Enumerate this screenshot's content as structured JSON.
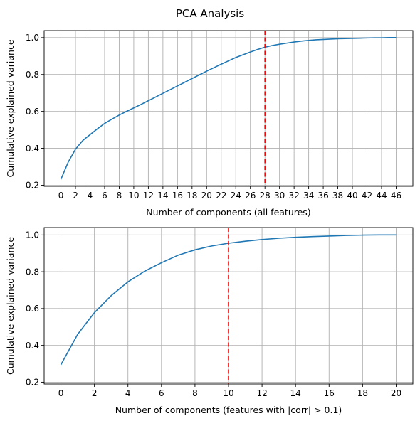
{
  "suptitle": "PCA Analysis",
  "chart_data": [
    {
      "type": "line",
      "series": [
        {
          "name": "cumulative explained variance",
          "x": [
            0,
            1,
            2,
            3,
            4,
            5,
            6,
            7,
            8,
            9,
            10,
            11,
            12,
            13,
            14,
            15,
            16,
            17,
            18,
            19,
            20,
            21,
            22,
            23,
            24,
            25,
            26,
            27,
            28,
            29,
            30,
            31,
            32,
            33,
            34,
            35,
            36,
            37,
            38,
            39,
            40,
            41,
            42,
            43,
            44,
            45,
            46
          ],
          "values": [
            0.232,
            0.325,
            0.395,
            0.442,
            0.474,
            0.505,
            0.535,
            0.558,
            0.58,
            0.6,
            0.619,
            0.638,
            0.658,
            0.678,
            0.698,
            0.718,
            0.738,
            0.758,
            0.778,
            0.798,
            0.818,
            0.837,
            0.856,
            0.874,
            0.892,
            0.907,
            0.922,
            0.936,
            0.948,
            0.957,
            0.964,
            0.97,
            0.976,
            0.981,
            0.985,
            0.988,
            0.99,
            0.992,
            0.994,
            0.995,
            0.996,
            0.997,
            0.998,
            0.999,
            0.999,
            1.0,
            1.0
          ]
        }
      ],
      "color": "#1f77b4",
      "threshold_x": 28,
      "threshold_color": "#ff0000",
      "xlabel": "Number of components (all features)",
      "ylabel": "Cumulative explained variance",
      "xlim": [
        -2.3,
        48.3
      ],
      "ylim": [
        0.194,
        1.038
      ],
      "xticks": [
        0,
        2,
        4,
        6,
        8,
        10,
        12,
        14,
        16,
        18,
        20,
        22,
        24,
        26,
        28,
        30,
        32,
        34,
        36,
        38,
        40,
        42,
        44,
        46
      ],
      "xtick_labels": [
        "0",
        "2",
        "4",
        "6",
        "8",
        "10",
        "12",
        "14",
        "16",
        "18",
        "20",
        "22",
        "24",
        "26",
        "28",
        "30",
        "32",
        "34",
        "36",
        "38",
        "40",
        "42",
        "44",
        "46"
      ],
      "yticks": [
        0.2,
        0.4,
        0.6,
        0.8,
        1.0
      ],
      "ytick_labels": [
        "0.2",
        "0.4",
        "0.6",
        "0.8",
        "1.0"
      ],
      "grid": true
    },
    {
      "type": "line",
      "series": [
        {
          "name": "cumulative explained variance",
          "x": [
            0,
            1,
            2,
            3,
            4,
            5,
            6,
            7,
            8,
            9,
            10,
            11,
            12,
            13,
            14,
            15,
            16,
            17,
            18,
            19,
            20
          ],
          "values": [
            0.295,
            0.46,
            0.578,
            0.67,
            0.745,
            0.803,
            0.849,
            0.89,
            0.919,
            0.94,
            0.955,
            0.966,
            0.975,
            0.982,
            0.987,
            0.991,
            0.994,
            0.997,
            0.999,
            1.0,
            1.0
          ]
        }
      ],
      "color": "#1f77b4",
      "threshold_x": 10,
      "threshold_color": "#ff0000",
      "xlabel": "Number of components (features with |corr| > 0.1)",
      "ylabel": "Cumulative explained variance",
      "xlim": [
        -1.0,
        21.0
      ],
      "ylim": [
        0.19,
        1.04
      ],
      "xticks": [
        0,
        2,
        4,
        6,
        8,
        10,
        12,
        14,
        16,
        18,
        20
      ],
      "xtick_labels": [
        "0",
        "2",
        "4",
        "6",
        "8",
        "10",
        "12",
        "14",
        "16",
        "18",
        "20"
      ],
      "yticks": [
        0.2,
        0.4,
        0.6,
        0.8,
        1.0
      ],
      "ytick_labels": [
        "0.2",
        "0.4",
        "0.6",
        "0.8",
        "1.0"
      ],
      "grid": true
    }
  ]
}
